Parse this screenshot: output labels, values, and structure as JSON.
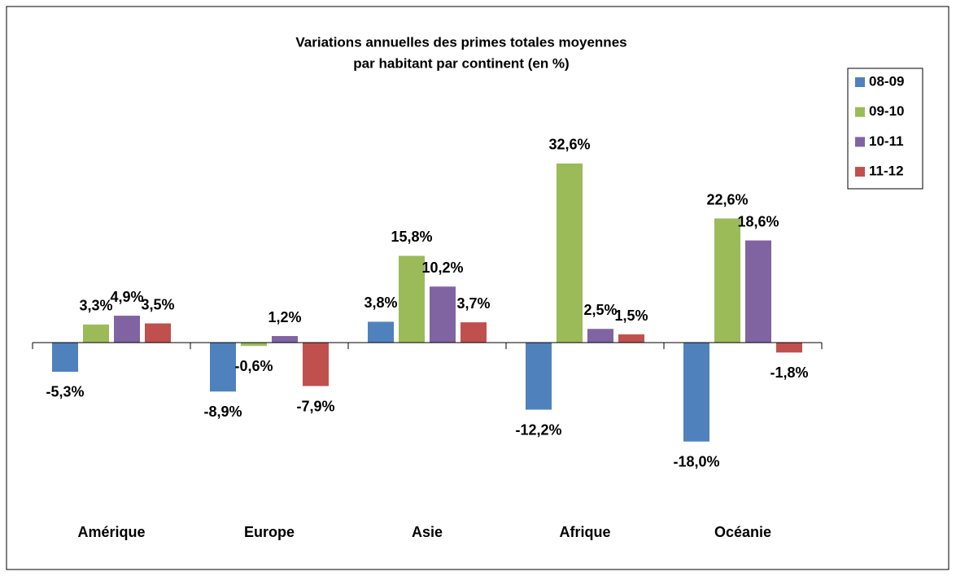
{
  "chart_data": {
    "type": "bar",
    "title": [
      "Variations annuelles des primes totales moyennes",
      "par habitant par continent (en %)"
    ],
    "categories": [
      "Amérique",
      "Europe",
      "Asie",
      "Afrique",
      "Océanie"
    ],
    "series": [
      {
        "name": "08-09",
        "color": "#4f81bd",
        "values": [
          -5.3,
          -8.9,
          3.8,
          -12.2,
          -18.0
        ],
        "value_labels": [
          "-5,3%",
          "-8,9%",
          "3,8%",
          "-12,2%",
          "-18,0%"
        ]
      },
      {
        "name": "09-10",
        "color": "#9bbb59",
        "values": [
          3.3,
          -0.6,
          15.8,
          32.6,
          22.6
        ],
        "value_labels": [
          "3,3%",
          "-0,6%",
          "15,8%",
          "32,6%",
          "22,6%"
        ]
      },
      {
        "name": "10-11",
        "color": "#8064a2",
        "values": [
          4.9,
          1.2,
          10.2,
          2.5,
          18.6
        ],
        "value_labels": [
          "4,9%",
          "1,2%",
          "10,2%",
          "2,5%",
          "18,6%"
        ]
      },
      {
        "name": "11-12",
        "color": "#c0504d",
        "values": [
          3.5,
          -7.9,
          3.7,
          1.5,
          -1.8
        ],
        "value_labels": [
          "3,5%",
          "-7,9%",
          "3,7%",
          "1,5%",
          "-1,8%"
        ]
      }
    ],
    "ylim": [
      -25,
      40
    ],
    "legend": "right"
  }
}
